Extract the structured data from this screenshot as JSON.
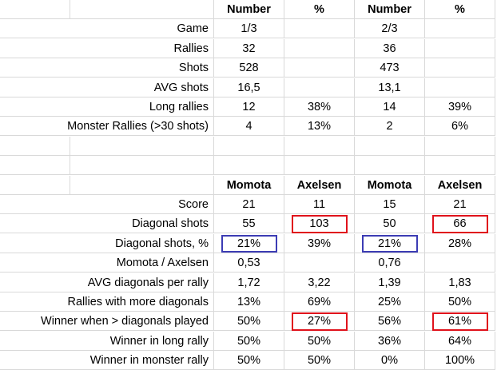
{
  "table1": {
    "headers": [
      "Number",
      "%",
      "Number",
      "%"
    ],
    "rows": [
      {
        "label": "Game",
        "values": [
          "1/3",
          "",
          "2/3",
          ""
        ]
      },
      {
        "label": "Rallies",
        "values": [
          "32",
          "",
          "36",
          ""
        ]
      },
      {
        "label": "Shots",
        "values": [
          "528",
          "",
          "473",
          ""
        ]
      },
      {
        "label": "AVG shots",
        "values": [
          "16,5",
          "",
          "13,1",
          ""
        ]
      },
      {
        "label": "Long rallies",
        "values": [
          "12",
          "38%",
          "14",
          "39%"
        ]
      },
      {
        "label": "Monster Rallies (>30 shots)",
        "values": [
          "4",
          "13%",
          "2",
          "6%"
        ]
      }
    ]
  },
  "table2": {
    "headers": [
      "Momota",
      "Axelsen",
      "Momota",
      "Axelsen"
    ],
    "rows": [
      {
        "label": "Score",
        "values": [
          "21",
          "11",
          "15",
          "21"
        ]
      },
      {
        "label": "Diagonal shots",
        "values": [
          "55",
          "103",
          "50",
          "66"
        ]
      },
      {
        "label": "Diagonal shots, %",
        "values": [
          "21%",
          "39%",
          "21%",
          "28%"
        ]
      },
      {
        "label": "Momota / Axelsen",
        "values": [
          "0,53",
          "",
          "0,76",
          ""
        ]
      },
      {
        "label": "AVG diagonals per rally",
        "values": [
          "1,72",
          "3,22",
          "1,39",
          "1,83"
        ]
      },
      {
        "label": "Rallies with more diagonals",
        "values": [
          "13%",
          "69%",
          "25%",
          "50%"
        ]
      },
      {
        "label": "Winner when > diagonals played",
        "values": [
          "50%",
          "27%",
          "56%",
          "61%"
        ]
      },
      {
        "label": "Winner in long rally",
        "values": [
          "50%",
          "50%",
          "36%",
          "64%"
        ]
      },
      {
        "label": "Winner in monster rally",
        "values": [
          "50%",
          "50%",
          "0%",
          "100%"
        ]
      }
    ]
  },
  "highlight_colors": {
    "red": "#e0121b",
    "blue": "#3c3cb4"
  }
}
